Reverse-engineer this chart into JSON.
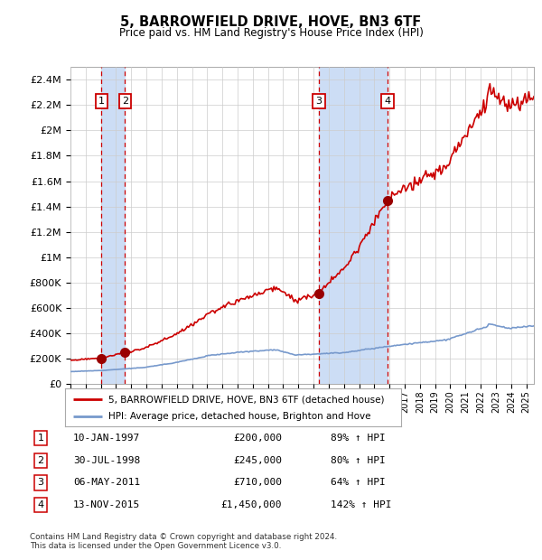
{
  "title": "5, BARROWFIELD DRIVE, HOVE, BN3 6TF",
  "subtitle": "Price paid vs. HM Land Registry's House Price Index (HPI)",
  "legend_line1": "5, BARROWFIELD DRIVE, HOVE, BN3 6TF (detached house)",
  "legend_line2": "HPI: Average price, detached house, Brighton and Hove",
  "footer1": "Contains HM Land Registry data © Crown copyright and database right 2024.",
  "footer2": "This data is licensed under the Open Government Licence v3.0.",
  "table": [
    {
      "num": 1,
      "date": "10-JAN-1997",
      "price": "£200,000",
      "pct": "89% ↑ HPI"
    },
    {
      "num": 2,
      "date": "30-JUL-1998",
      "price": "£245,000",
      "pct": "80% ↑ HPI"
    },
    {
      "num": 3,
      "date": "06-MAY-2011",
      "price": "£710,000",
      "pct": "64% ↑ HPI"
    },
    {
      "num": 4,
      "date": "13-NOV-2015",
      "price": "£1,450,000",
      "pct": "142% ↑ HPI"
    }
  ],
  "sale_years": [
    1997.03,
    1998.58,
    2011.35,
    2015.87
  ],
  "sale_prices": [
    200000,
    245000,
    710000,
    1450000
  ],
  "hpi_color": "#7799cc",
  "price_color": "#cc0000",
  "dot_color": "#990000",
  "shade_color": "#ccddf5",
  "vline_color": "#cc0000",
  "grid_color": "#cccccc",
  "ylim_max": 2500000,
  "xlim_start": 1995.0,
  "xlim_end": 2025.5,
  "background_color": "#ffffff",
  "yticks": [
    0,
    200000,
    400000,
    600000,
    800000,
    1000000,
    1200000,
    1400000,
    1600000,
    1800000,
    2000000,
    2200000,
    2400000
  ],
  "ylabels": [
    "£0",
    "£200K",
    "£400K",
    "£600K",
    "£800K",
    "£1M",
    "£1.2M",
    "£1.4M",
    "£1.6M",
    "£1.8M",
    "£2M",
    "£2.2M",
    "£2.4M"
  ]
}
